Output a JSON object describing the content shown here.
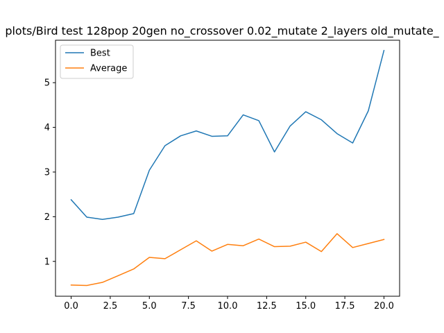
{
  "chart_data": {
    "type": "line",
    "title": "plots/Bird test 128pop 20gen no_crossover 0.02_mutate 2_layers old_mutate_",
    "xlabel": "",
    "ylabel": "",
    "xlim": [
      -1.0,
      21.0
    ],
    "ylim": [
      0.22,
      5.95
    ],
    "xticks": [
      0,
      2.5,
      5,
      7.5,
      10,
      12.5,
      15,
      17.5,
      20
    ],
    "xtick_labels": [
      "0.0",
      "2.5",
      "5.0",
      "7.5",
      "10.0",
      "12.5",
      "15.0",
      "17.5",
      "20.0"
    ],
    "yticks": [
      1,
      2,
      3,
      4,
      5
    ],
    "ytick_labels": [
      "1",
      "2",
      "3",
      "4",
      "5"
    ],
    "grid": false,
    "legend_position": "top-left",
    "x": [
      0,
      1,
      2,
      3,
      4,
      5,
      6,
      7,
      8,
      9,
      10,
      11,
      12,
      13,
      14,
      15,
      16,
      17,
      18,
      19,
      20
    ],
    "series": [
      {
        "name": "Best",
        "color": "#1f77b4",
        "values": [
          2.38,
          1.99,
          1.94,
          1.99,
          2.07,
          3.04,
          3.59,
          3.81,
          3.92,
          3.8,
          3.81,
          4.28,
          4.15,
          3.45,
          4.03,
          4.35,
          4.17,
          3.86,
          3.65,
          4.37,
          5.72
        ]
      },
      {
        "name": "Average",
        "color": "#ff7f0e",
        "values": [
          0.47,
          0.46,
          0.53,
          0.68,
          0.83,
          1.09,
          1.06,
          1.26,
          1.46,
          1.23,
          1.38,
          1.35,
          1.5,
          1.33,
          1.34,
          1.43,
          1.22,
          1.62,
          1.31,
          1.4,
          1.49
        ]
      }
    ]
  }
}
